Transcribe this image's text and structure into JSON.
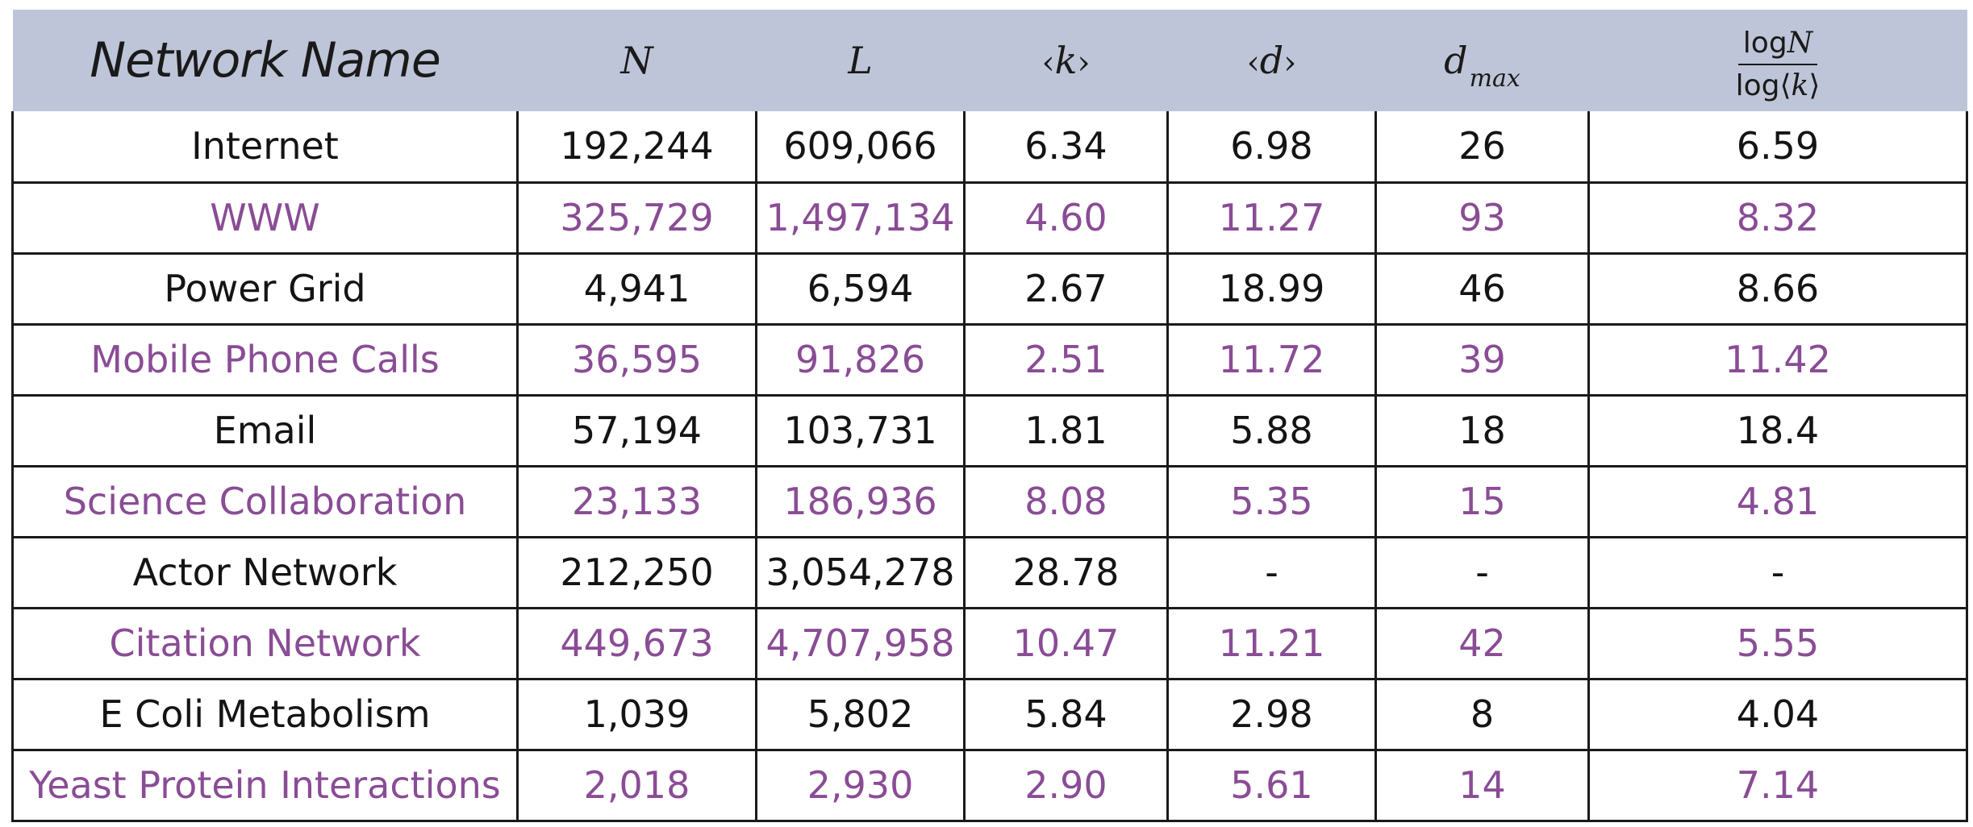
{
  "colors": {
    "header_background": "#bfc5d8",
    "text_dark": "#141414",
    "text_purple": "#8a4c95",
    "border": "#1a1a1a"
  },
  "headers": {
    "name": "Network Name",
    "n": "N",
    "l": "L",
    "k": "k",
    "d": "d",
    "dmax": "d",
    "dmax_sub": "max",
    "ratio_num_prefix": "log",
    "ratio_num_var": "N",
    "ratio_den_prefix": "log",
    "ratio_den_var": "k"
  },
  "rows": [
    {
      "name": "Internet",
      "n": "192,244",
      "l": "609,066",
      "k": "6.34",
      "d": "6.98",
      "dmax": "26",
      "ratio": "6.59"
    },
    {
      "name": "WWW",
      "n": "325,729",
      "l": "1,497,134",
      "k": "4.60",
      "d": "11.27",
      "dmax": "93",
      "ratio": "8.32"
    },
    {
      "name": "Power Grid",
      "n": "4,941",
      "l": "6,594",
      "k": "2.67",
      "d": "18.99",
      "dmax": "46",
      "ratio": "8.66"
    },
    {
      "name": "Mobile Phone Calls",
      "n": "36,595",
      "l": "91,826",
      "k": "2.51",
      "d": "11.72",
      "dmax": "39",
      "ratio": "11.42"
    },
    {
      "name": "Email",
      "n": "57,194",
      "l": "103,731",
      "k": "1.81",
      "d": "5.88",
      "dmax": "18",
      "ratio": "18.4"
    },
    {
      "name": "Science Collaboration",
      "n": "23,133",
      "l": "186,936",
      "k": "8.08",
      "d": "5.35",
      "dmax": "15",
      "ratio": "4.81"
    },
    {
      "name": "Actor Network",
      "n": "212,250",
      "l": "3,054,278",
      "k": "28.78",
      "d": "-",
      "dmax": "-",
      "ratio": "-"
    },
    {
      "name": "Citation Network",
      "n": "449,673",
      "l": "4,707,958",
      "k": "10.47",
      "d": "11.21",
      "dmax": "42",
      "ratio": "5.55"
    },
    {
      "name": "E Coli Metabolism",
      "n": "1,039",
      "l": "5,802",
      "k": "5.84",
      "d": "2.98",
      "dmax": "8",
      "ratio": "4.04"
    },
    {
      "name": "Yeast Protein Interactions",
      "n": "2,018",
      "l": "2,930",
      "k": "2.90",
      "d": "5.61",
      "dmax": "14",
      "ratio": "7.14"
    }
  ]
}
